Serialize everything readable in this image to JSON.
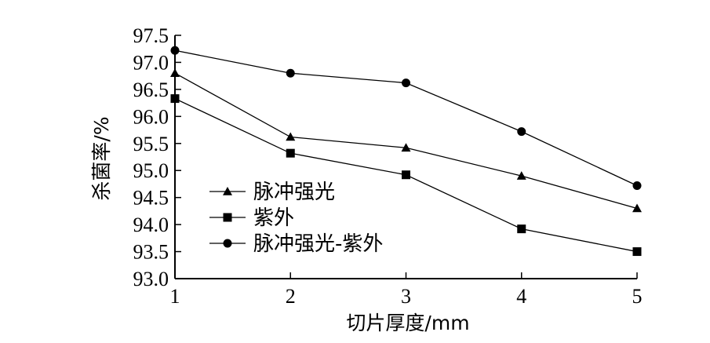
{
  "chart_data": {
    "type": "line",
    "title": "",
    "xlabel": "切片厚度/mm",
    "ylabel": "杀菌率/%",
    "x": [
      1,
      2,
      3,
      4,
      5
    ],
    "xticks": [
      "1",
      "2",
      "3",
      "4",
      "5"
    ],
    "ylim": [
      93.0,
      97.5
    ],
    "yticks": [
      "93.0",
      "93.5",
      "94.0",
      "94.5",
      "95.0",
      "95.5",
      "96.0",
      "96.5",
      "97.0",
      "97.5"
    ],
    "grid": false,
    "legend_position": "lower-left",
    "series": [
      {
        "name": "脉冲强光",
        "marker": "triangle",
        "values": [
          96.8,
          95.62,
          95.42,
          94.9,
          94.3
        ]
      },
      {
        "name": "紫外",
        "marker": "square",
        "values": [
          96.33,
          95.32,
          94.92,
          93.92,
          93.5
        ]
      },
      {
        "name": "脉冲强光-紫外",
        "marker": "circle",
        "values": [
          97.22,
          96.8,
          96.62,
          95.72,
          94.72
        ]
      }
    ],
    "colors": {
      "line": "#000000",
      "marker": "#000000"
    }
  }
}
